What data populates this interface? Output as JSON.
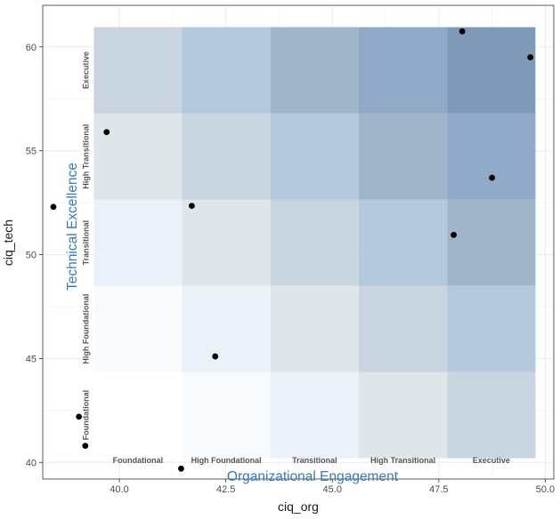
{
  "chart_data": {
    "type": "scatter",
    "xlabel": "ciq_org",
    "ylabel": "ciq_tech",
    "xlim": [
      38.2,
      50.2
    ],
    "ylim": [
      39.2,
      62.0
    ],
    "x_ticks": [
      {
        "value": 40.0,
        "label": "40.0"
      },
      {
        "value": 42.5,
        "label": "42.5"
      },
      {
        "value": 45.0,
        "label": "45.0"
      },
      {
        "value": 47.5,
        "label": "47.5"
      },
      {
        "value": 50.0,
        "label": "50.0"
      }
    ],
    "y_ticks": [
      {
        "value": 40,
        "label": "40"
      },
      {
        "value": 45,
        "label": "45"
      },
      {
        "value": 50,
        "label": "50"
      },
      {
        "value": 55,
        "label": "55"
      },
      {
        "value": 60,
        "label": "60"
      }
    ],
    "grid": true,
    "overlay_x_title": "Organizational Engagement",
    "overlay_y_title": "Technical Excellence",
    "band_levels": [
      "Foundational",
      "High Foundational",
      "Transitional",
      "High Transitional",
      "Executive"
    ],
    "heat_x_edges": [
      39.4,
      41.47,
      43.55,
      45.62,
      47.7,
      49.77
    ],
    "heat_y_edges": [
      40.2,
      44.35,
      48.5,
      52.65,
      56.8,
      60.95
    ],
    "heat_colors": [
      [
        "#ffffff",
        "#f8fafc",
        "#ebf1f8",
        "#dfe6ea",
        "#c8d4e0"
      ],
      [
        "#f8fafc",
        "#ebf1f8",
        "#dfe6ea",
        "#c8d4e0",
        "#b4c8de"
      ],
      [
        "#ebf1f8",
        "#dfe6ea",
        "#c8d4e0",
        "#b4c8de",
        "#a0b4ca"
      ],
      [
        "#dfe6ea",
        "#c8d4e0",
        "#b4c8de",
        "#a0b4ca",
        "#8fa9c6"
      ],
      [
        "#c8d4e0",
        "#b4c8de",
        "#a0b4ca",
        "#8fa9c6",
        "#7f9ab8"
      ]
    ],
    "points": [
      {
        "x": 38.45,
        "y": 52.3
      },
      {
        "x": 39.05,
        "y": 42.2
      },
      {
        "x": 39.2,
        "y": 40.8
      },
      {
        "x": 39.7,
        "y": 55.9
      },
      {
        "x": 41.7,
        "y": 52.35
      },
      {
        "x": 41.45,
        "y": 39.7
      },
      {
        "x": 42.25,
        "y": 45.1
      },
      {
        "x": 47.85,
        "y": 50.95
      },
      {
        "x": 48.05,
        "y": 60.75
      },
      {
        "x": 48.75,
        "y": 53.7
      },
      {
        "x": 49.65,
        "y": 59.5
      }
    ],
    "point_color": "#000000"
  }
}
